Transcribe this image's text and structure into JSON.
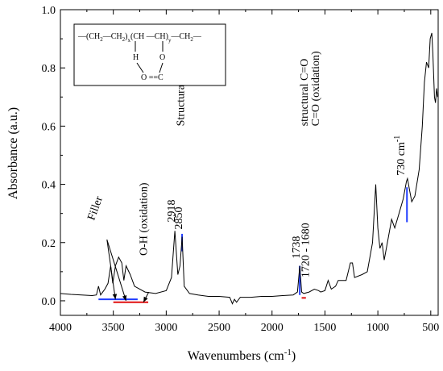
{
  "chart_data": {
    "type": "line",
    "xlabel": "Wavenumbers (cm",
    "xlabel_sup": "-1",
    "xlabel_tail": ")",
    "ylabel": "Absorbance (a.u.)",
    "xlim": [
      4000,
      430
    ],
    "ylim": [
      -0.05,
      1.0
    ],
    "x_ticks": [
      4000,
      3500,
      3000,
      2500,
      2000,
      1500,
      1000,
      500
    ],
    "x_tick_labels": [
      "4000",
      "3500",
      "3000",
      "2500",
      "2000",
      "1500",
      "1000",
      "500"
    ],
    "y_ticks": [
      0.0,
      0.2,
      0.4,
      0.6,
      0.8,
      1.0
    ],
    "y_tick_labels": [
      "0.0",
      "0.2",
      "0.4",
      "0.6",
      "0.8",
      "1.0"
    ],
    "grid": false,
    "line_color": "#000000",
    "spectrum": [
      [
        4000,
        0.025
      ],
      [
        3900,
        0.022
      ],
      [
        3800,
        0.02
      ],
      [
        3700,
        0.018
      ],
      [
        3660,
        0.02
      ],
      [
        3640,
        0.05
      ],
      [
        3620,
        0.02
      ],
      [
        3580,
        0.04
      ],
      [
        3550,
        0.06
      ],
      [
        3525,
        0.12
      ],
      [
        3505,
        0.06
      ],
      [
        3480,
        0.12
      ],
      [
        3450,
        0.15
      ],
      [
        3420,
        0.13
      ],
      [
        3400,
        0.07
      ],
      [
        3380,
        0.12
      ],
      [
        3340,
        0.09
      ],
      [
        3300,
        0.05
      ],
      [
        3200,
        0.03
      ],
      [
        3100,
        0.025
      ],
      [
        3000,
        0.035
      ],
      [
        2950,
        0.08
      ],
      [
        2918,
        0.24
      ],
      [
        2890,
        0.09
      ],
      [
        2870,
        0.12
      ],
      [
        2850,
        0.22
      ],
      [
        2830,
        0.05
      ],
      [
        2780,
        0.025
      ],
      [
        2700,
        0.02
      ],
      [
        2600,
        0.015
      ],
      [
        2500,
        0.015
      ],
      [
        2400,
        0.012
      ],
      [
        2375,
        -0.01
      ],
      [
        2355,
        0.005
      ],
      [
        2335,
        -0.005
      ],
      [
        2300,
        0.012
      ],
      [
        2200,
        0.012
      ],
      [
        2100,
        0.015
      ],
      [
        2000,
        0.015
      ],
      [
        1900,
        0.018
      ],
      [
        1800,
        0.02
      ],
      [
        1760,
        0.03
      ],
      [
        1738,
        0.12
      ],
      [
        1720,
        0.03
      ],
      [
        1700,
        0.025
      ],
      [
        1650,
        0.03
      ],
      [
        1600,
        0.04
      ],
      [
        1560,
        0.035
      ],
      [
        1540,
        0.03
      ],
      [
        1500,
        0.035
      ],
      [
        1470,
        0.07
      ],
      [
        1440,
        0.04
      ],
      [
        1400,
        0.05
      ],
      [
        1375,
        0.07
      ],
      [
        1300,
        0.07
      ],
      [
        1260,
        0.13
      ],
      [
        1240,
        0.13
      ],
      [
        1220,
        0.08
      ],
      [
        1150,
        0.09
      ],
      [
        1100,
        0.1
      ],
      [
        1050,
        0.2
      ],
      [
        1020,
        0.4
      ],
      [
        1000,
        0.25
      ],
      [
        980,
        0.18
      ],
      [
        960,
        0.2
      ],
      [
        940,
        0.14
      ],
      [
        900,
        0.22
      ],
      [
        870,
        0.28
      ],
      [
        840,
        0.25
      ],
      [
        800,
        0.3
      ],
      [
        760,
        0.35
      ],
      [
        730,
        0.41
      ],
      [
        720,
        0.42
      ],
      [
        700,
        0.38
      ],
      [
        680,
        0.34
      ],
      [
        650,
        0.36
      ],
      [
        610,
        0.45
      ],
      [
        580,
        0.6
      ],
      [
        560,
        0.75
      ],
      [
        540,
        0.82
      ],
      [
        520,
        0.8
      ],
      [
        505,
        0.9
      ],
      [
        490,
        0.92
      ],
      [
        480,
        0.85
      ],
      [
        465,
        0.7
      ],
      [
        455,
        0.68
      ],
      [
        445,
        0.73
      ],
      [
        435,
        0.7
      ]
    ],
    "peak_labels": [
      {
        "text": "2918",
        "x": 2918,
        "y": 0.27
      },
      {
        "text": "2850",
        "x": 2850,
        "y": 0.245
      },
      {
        "text": "1738",
        "x": 1738,
        "y": 0.145
      },
      {
        "text": "1720 - 1680",
        "x": 1650,
        "y": 0.08
      }
    ],
    "annotations": [
      {
        "text": "Structural C-H",
        "x": 2830,
        "y": 0.6
      },
      {
        "text": "structural C=O",
        "x": 1665,
        "y": 0.6
      },
      {
        "text": "C=O (oxidation)",
        "x": 1555,
        "y": 0.6
      },
      {
        "text": "O-H (oxidation)",
        "x": 3180,
        "y": 0.155
      },
      {
        "text": "Filler",
        "x": 3560,
        "y": 0.28
      },
      {
        "text": "730 cm",
        "x": 750,
        "y": 0.43,
        "sup": "-1"
      }
    ],
    "blue_marks": [
      {
        "x1": 3640,
        "y1": 0.005,
        "x2": 3270,
        "y2": 0.005
      },
      {
        "x1": 2850,
        "y1": 0.17,
        "x2": 2850,
        "y2": 0.23
      },
      {
        "x1": 1738,
        "y1": 0.02,
        "x2": 1738,
        "y2": 0.12
      },
      {
        "x1": 725,
        "y1": 0.27,
        "x2": 725,
        "y2": 0.39
      }
    ],
    "red_marks": [
      {
        "x1": 3500,
        "y1": -0.005,
        "x2": 3170,
        "y2": -0.005
      },
      {
        "x1": 1720,
        "y1": 0.01,
        "x2": 1680,
        "y2": 0.01
      }
    ],
    "arrows": [
      {
        "x1": 3560,
        "y1": 0.21,
        "x2": 3480,
        "y2": 0.005
      },
      {
        "x1": 3560,
        "y1": 0.21,
        "x2": 3380,
        "y2": 0.0
      },
      {
        "x1": 3165,
        "y1": 0.03,
        "x2": 3215,
        "y2": -0.005
      }
    ],
    "formula": {
      "row1": [
        "—(CH",
        "2",
        "—CH",
        "2",
        ")",
        "x",
        "(CH —CH)",
        "y",
        "—CH",
        "2",
        "—"
      ],
      "h": "H",
      "o": "O",
      "bottom": "O ==C"
    }
  }
}
